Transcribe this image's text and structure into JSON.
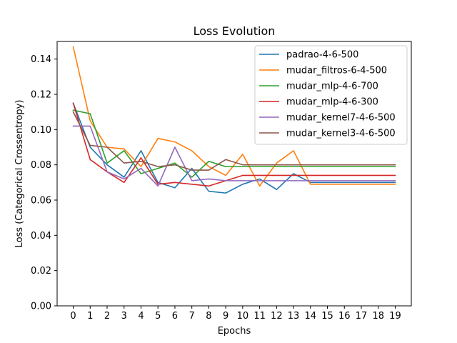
{
  "chart_data": {
    "type": "line",
    "title": "Loss Evolution",
    "xlabel": "Epochs",
    "ylabel": "Loss (Categorical Crossentropy)",
    "x": [
      0,
      1,
      2,
      3,
      4,
      5,
      6,
      7,
      8,
      9,
      10,
      11,
      12,
      13,
      14,
      15,
      16,
      17,
      18,
      19
    ],
    "xticks": [
      "0",
      "1",
      "2",
      "3",
      "4",
      "5",
      "6",
      "7",
      "8",
      "9",
      "10",
      "11",
      "12",
      "13",
      "14",
      "15",
      "16",
      "17",
      "18",
      "19"
    ],
    "xlim": [
      -0.95,
      19.95
    ],
    "ylim": [
      0,
      0.15
    ],
    "yticks": [
      0.0,
      0.02,
      0.04,
      0.06,
      0.08,
      0.1,
      0.12,
      0.14
    ],
    "ytick_labels": [
      "0.00",
      "0.02",
      "0.04",
      "0.06",
      "0.08",
      "0.10",
      "0.12",
      "0.14"
    ],
    "grid": false,
    "legend_position": "top-right",
    "series": [
      {
        "name": "padrao-4-6-500",
        "color": "#1f77b4",
        "values": [
          0.115,
          0.09,
          0.08,
          0.073,
          0.088,
          0.07,
          0.067,
          0.078,
          0.065,
          0.064,
          0.069,
          0.072,
          0.066,
          0.075,
          0.07,
          0.07,
          0.07,
          0.07,
          0.07,
          0.07
        ]
      },
      {
        "name": "mudar_filtros-6-4-500",
        "color": "#ff7f0e",
        "values": [
          0.147,
          0.105,
          0.09,
          0.089,
          0.079,
          0.095,
          0.093,
          0.088,
          0.079,
          0.074,
          0.086,
          0.068,
          0.081,
          0.088,
          0.069,
          0.069,
          0.069,
          0.069,
          0.069,
          0.069
        ]
      },
      {
        "name": "mudar_mlp-4-6-700",
        "color": "#2ca02c",
        "values": [
          0.111,
          0.109,
          0.081,
          0.088,
          0.075,
          0.078,
          0.081,
          0.073,
          0.082,
          0.079,
          0.079,
          0.079,
          0.079,
          0.079,
          0.079,
          0.079,
          0.079,
          0.079,
          0.079,
          0.079
        ]
      },
      {
        "name": "mudar_mlp-4-6-300",
        "color": "#d62728",
        "values": [
          0.115,
          0.083,
          0.076,
          0.07,
          0.084,
          0.069,
          0.07,
          0.069,
          0.068,
          0.071,
          0.074,
          0.074,
          0.074,
          0.074,
          0.074,
          0.074,
          0.074,
          0.074,
          0.074,
          0.074
        ]
      },
      {
        "name": "mudar_kernel7-4-6-500",
        "color": "#9467bd",
        "values": [
          0.102,
          0.102,
          0.076,
          0.072,
          0.078,
          0.068,
          0.09,
          0.071,
          0.072,
          0.071,
          0.071,
          0.071,
          0.071,
          0.071,
          0.071,
          0.071,
          0.071,
          0.071,
          0.071,
          0.071
        ]
      },
      {
        "name": "mudar_kernel3-4-6-500",
        "color": "#8c564b",
        "values": [
          0.11,
          0.091,
          0.09,
          0.081,
          0.082,
          0.079,
          0.08,
          0.077,
          0.077,
          0.083,
          0.08,
          0.08,
          0.08,
          0.08,
          0.08,
          0.08,
          0.08,
          0.08,
          0.08,
          0.08
        ]
      }
    ]
  }
}
